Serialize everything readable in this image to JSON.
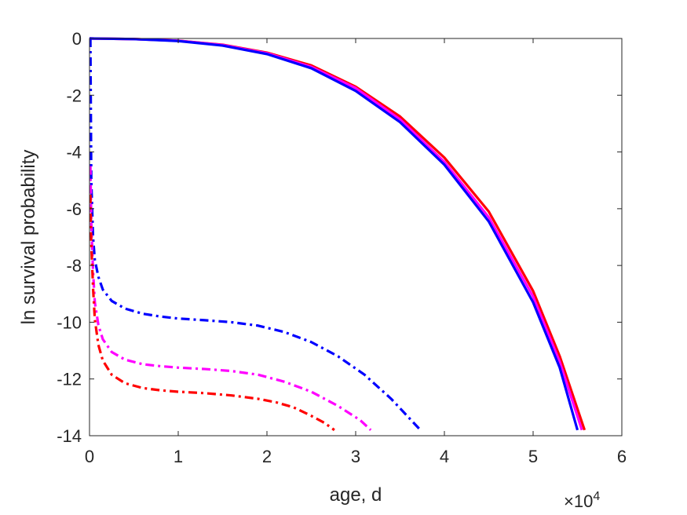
{
  "chart_data": {
    "type": "line",
    "xlabel": "age, d",
    "ylabel": "ln survival probability",
    "x_multiplier_base": "×10",
    "x_multiplier_exponent": "4",
    "xlim": [
      0,
      6
    ],
    "ylim": [
      -14,
      0
    ],
    "xticks": [
      "0",
      "1",
      "2",
      "3",
      "4",
      "5",
      "6"
    ],
    "yticks": [
      "0",
      "-2",
      "-4",
      "-6",
      "-8",
      "-10",
      "-12",
      "-14"
    ],
    "xtick_values": [
      0,
      1,
      2,
      3,
      4,
      5,
      6
    ],
    "ytick_values": [
      0,
      -2,
      -4,
      -6,
      -8,
      -10,
      -12,
      -14
    ],
    "grid": false,
    "series": [
      {
        "color": "#ff0000",
        "style": "solid",
        "x": [
          0,
          0.5,
          1,
          1.5,
          2,
          2.5,
          3,
          3.5,
          4,
          4.5,
          5,
          5.3,
          5.58
        ],
        "y": [
          0,
          -0.02,
          -0.08,
          -0.22,
          -0.5,
          -0.95,
          -1.7,
          -2.75,
          -4.2,
          -6.1,
          -8.9,
          -11.2,
          -13.8
        ]
      },
      {
        "color": "#ff00ff",
        "style": "solid",
        "x": [
          0,
          0.5,
          1,
          1.5,
          2,
          2.5,
          3,
          3.5,
          4,
          4.5,
          5,
          5.3,
          5.55
        ],
        "y": [
          0,
          -0.02,
          -0.08,
          -0.23,
          -0.52,
          -1.0,
          -1.75,
          -2.85,
          -4.35,
          -6.3,
          -9.1,
          -11.4,
          -13.8
        ]
      },
      {
        "color": "#0000ff",
        "style": "solid",
        "x": [
          0,
          0.5,
          1,
          1.5,
          2,
          2.5,
          3,
          3.5,
          4,
          4.5,
          5,
          5.3,
          5.5
        ],
        "y": [
          0,
          -0.02,
          -0.09,
          -0.25,
          -0.55,
          -1.05,
          -1.85,
          -2.95,
          -4.45,
          -6.45,
          -9.3,
          -11.6,
          -13.8
        ]
      },
      {
        "color": "#0000ff",
        "style": "dashdot",
        "x": [
          0.01,
          0.02,
          0.04,
          0.06,
          0.1,
          0.15,
          0.25,
          0.4,
          0.6,
          0.8,
          1.0,
          1.3,
          1.6,
          1.9,
          2.2,
          2.5,
          2.8,
          3.1,
          3.4,
          3.73
        ],
        "y": [
          0,
          -5.0,
          -7.0,
          -7.8,
          -8.4,
          -8.85,
          -9.25,
          -9.52,
          -9.7,
          -9.8,
          -9.87,
          -9.93,
          -10.0,
          -10.12,
          -10.35,
          -10.7,
          -11.2,
          -11.85,
          -12.7,
          -13.8
        ]
      },
      {
        "color": "#ff00ff",
        "style": "dashdot",
        "x": [
          0.01,
          0.02,
          0.04,
          0.06,
          0.1,
          0.15,
          0.25,
          0.4,
          0.6,
          0.8,
          1.0,
          1.3,
          1.6,
          1.9,
          2.2,
          2.5,
          2.8,
          3.05,
          3.17
        ],
        "y": [
          -4.5,
          -6.5,
          -8.2,
          -9.3,
          -10.1,
          -10.6,
          -11.05,
          -11.32,
          -11.48,
          -11.55,
          -11.6,
          -11.65,
          -11.72,
          -11.85,
          -12.1,
          -12.45,
          -12.95,
          -13.45,
          -13.8
        ]
      },
      {
        "color": "#ff0000",
        "style": "dashdot",
        "x": [
          0.01,
          0.02,
          0.04,
          0.06,
          0.1,
          0.15,
          0.25,
          0.4,
          0.6,
          0.8,
          1.0,
          1.3,
          1.6,
          1.9,
          2.1,
          2.3,
          2.5,
          2.65,
          2.76
        ],
        "y": [
          -5.5,
          -7.2,
          -8.8,
          -9.9,
          -10.8,
          -11.35,
          -11.85,
          -12.15,
          -12.32,
          -12.4,
          -12.45,
          -12.5,
          -12.58,
          -12.7,
          -12.82,
          -13.0,
          -13.3,
          -13.55,
          -13.8
        ]
      }
    ]
  }
}
